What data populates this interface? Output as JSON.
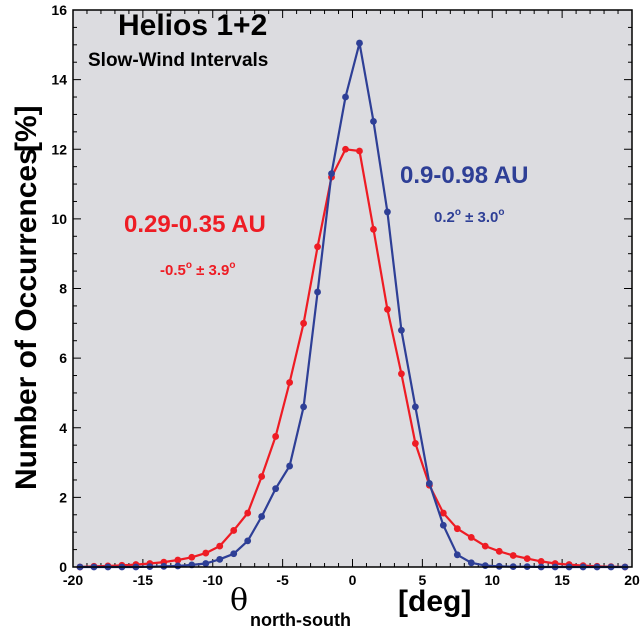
{
  "chart_data": {
    "type": "line",
    "title": "Helios 1+2",
    "subtitle": "Slow-Wind Intervals",
    "ylabel": "Number of Occurrences",
    "ylabel_unit": "[%]",
    "xlabel_symbol": "θ",
    "xlabel_subscript": "north-south",
    "xlabel_unit": "[deg]",
    "xlim": [
      -20,
      20
    ],
    "ylim": [
      0,
      16
    ],
    "xticks": [
      -20,
      -15,
      -10,
      -5,
      0,
      5,
      10,
      15,
      20
    ],
    "yticks": [
      0,
      2,
      4,
      6,
      8,
      10,
      12,
      14,
      16
    ],
    "grid": false,
    "background": "#dcdce0",
    "series": [
      {
        "name": "0.29-0.35 AU",
        "stat": "-0.5° ± 3.9°",
        "stat_value": "-0.5",
        "stat_sigma": "± 3.9",
        "color": "#ee1c24",
        "x": [
          -19.5,
          -18.5,
          -17.5,
          -16.5,
          -15.5,
          -14.5,
          -13.5,
          -12.5,
          -11.5,
          -10.5,
          -9.5,
          -8.5,
          -7.5,
          -6.5,
          -5.5,
          -4.5,
          -3.5,
          -2.5,
          -1.5,
          -0.5,
          0.5,
          1.5,
          2.5,
          3.5,
          4.5,
          5.5,
          6.5,
          7.5,
          8.5,
          9.5,
          10.5,
          11.5,
          12.5,
          13.5,
          14.5,
          15.5,
          16.5,
          17.5,
          18.5,
          19.5
        ],
        "values": [
          0.0,
          0.02,
          0.03,
          0.05,
          0.07,
          0.1,
          0.14,
          0.2,
          0.28,
          0.4,
          0.6,
          1.05,
          1.55,
          2.6,
          3.75,
          5.3,
          7.0,
          9.2,
          11.2,
          12.0,
          11.95,
          9.7,
          7.4,
          5.55,
          3.55,
          2.35,
          1.55,
          1.1,
          0.85,
          0.6,
          0.45,
          0.33,
          0.24,
          0.16,
          0.1,
          0.07,
          0.04,
          0.02,
          0.01,
          0.0
        ]
      },
      {
        "name": "0.9-0.98 AU",
        "stat": "0.2° ± 3.0°",
        "stat_value": "0.2",
        "stat_sigma": "± 3.0",
        "color": "#2e3f96",
        "x": [
          -19.5,
          -18.5,
          -17.5,
          -16.5,
          -15.5,
          -14.5,
          -13.5,
          -12.5,
          -11.5,
          -10.5,
          -9.5,
          -8.5,
          -7.5,
          -6.5,
          -5.5,
          -4.5,
          -3.5,
          -2.5,
          -1.5,
          -0.5,
          0.5,
          1.5,
          2.5,
          3.5,
          4.5,
          5.5,
          6.5,
          7.5,
          8.5,
          9.5,
          10.5,
          11.5,
          12.5,
          13.5,
          14.5,
          15.5,
          16.5,
          17.5,
          18.5,
          19.5
        ],
        "values": [
          0.0,
          0.0,
          0.0,
          0.0,
          0.0,
          0.01,
          0.02,
          0.03,
          0.06,
          0.1,
          0.22,
          0.38,
          0.75,
          1.45,
          2.25,
          2.9,
          4.6,
          7.9,
          11.3,
          13.5,
          15.05,
          12.8,
          10.2,
          6.8,
          4.6,
          2.4,
          1.2,
          0.35,
          0.12,
          0.04,
          0.02,
          0.01,
          0.01,
          0.0,
          0.0,
          0.0,
          0.0,
          0.0,
          0.0,
          0.0
        ]
      }
    ]
  }
}
